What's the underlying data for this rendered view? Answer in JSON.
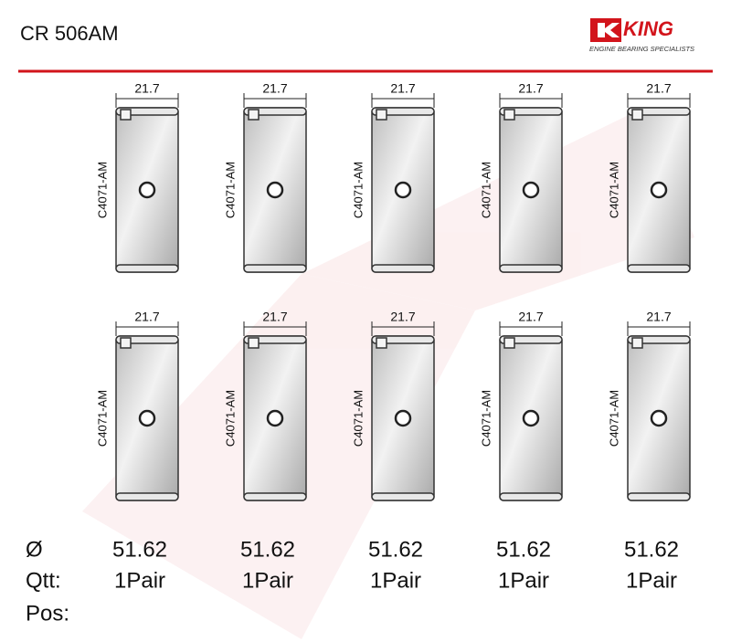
{
  "header": {
    "title": "CR 506AM",
    "logo": {
      "brand": "KING",
      "tagline": "ENGINE BEARING SPECIALISTS"
    }
  },
  "bearings": [
    {
      "width": "21.7",
      "part": "C4071-AM"
    },
    {
      "width": "21.7",
      "part": "C4071-AM"
    },
    {
      "width": "21.7",
      "part": "C4071-AM"
    },
    {
      "width": "21.7",
      "part": "C4071-AM"
    },
    {
      "width": "21.7",
      "part": "C4071-AM"
    },
    {
      "width": "21.7",
      "part": "C4071-AM"
    },
    {
      "width": "21.7",
      "part": "C4071-AM"
    },
    {
      "width": "21.7",
      "part": "C4071-AM"
    },
    {
      "width": "21.7",
      "part": "C4071-AM"
    },
    {
      "width": "21.7",
      "part": "C4071-AM"
    }
  ],
  "specs": {
    "labels": [
      "Ø",
      "Qtt:",
      "Pos:"
    ],
    "columns": [
      {
        "diameter": "51.62",
        "quantity": "1Pair"
      },
      {
        "diameter": "51.62",
        "quantity": "1Pair"
      },
      {
        "diameter": "51.62",
        "quantity": "1Pair"
      },
      {
        "diameter": "51.62",
        "quantity": "1Pair"
      },
      {
        "diameter": "51.62",
        "quantity": "1Pair"
      }
    ]
  }
}
